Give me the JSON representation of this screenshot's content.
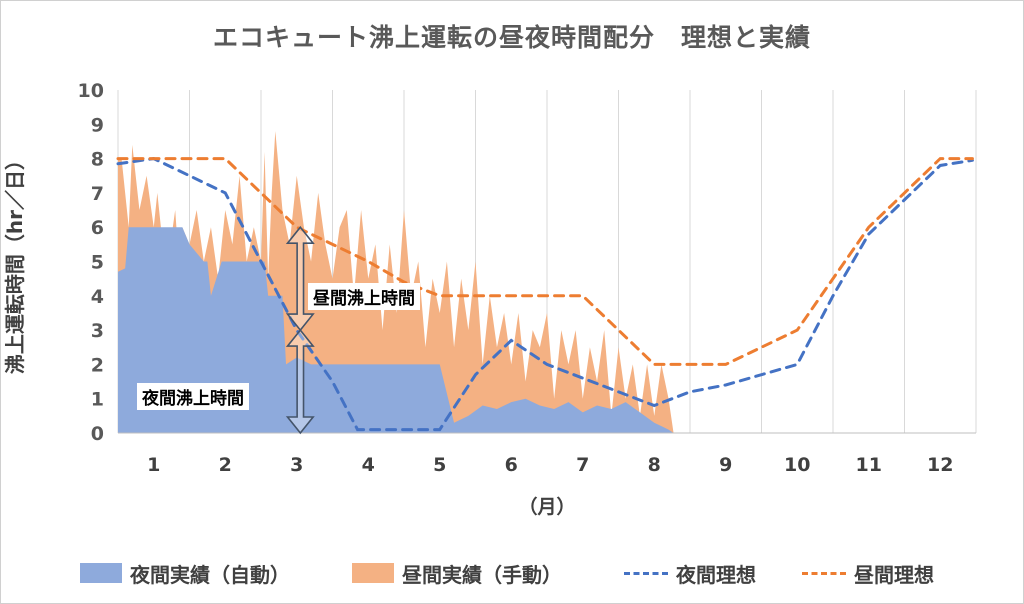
{
  "chart_data": {
    "type": "area",
    "title": "エコキュート沸上運転の昼夜時間配分　理想と実績",
    "ylabel": "沸上運転時間（hr／日）",
    "xlabel": "（月）",
    "ylim": [
      0,
      10
    ],
    "yticks": [
      0,
      1,
      2,
      3,
      4,
      5,
      6,
      7,
      8,
      9,
      10
    ],
    "categories": [
      "1",
      "2",
      "3",
      "4",
      "5",
      "6",
      "7",
      "8",
      "9",
      "10",
      "11",
      "12"
    ],
    "grid": "vertical",
    "legend_position": "bottom",
    "annotations": [
      "昼間沸上時間",
      "夜間沸上時間"
    ],
    "series": [
      {
        "name": "夜間実績（自動）",
        "kind": "area",
        "color": "#8eaadc",
        "x": [
          0.5,
          0.6,
          0.65,
          0.75,
          0.9,
          1.0,
          1.2,
          1.4,
          1.5,
          1.7,
          1.75,
          1.8,
          1.95,
          2.0,
          2.3,
          2.55,
          2.6,
          2.8,
          2.85,
          3.0,
          3.2,
          3.4,
          3.6,
          3.8,
          4.0,
          4.2,
          4.4,
          4.6,
          4.8,
          5.0,
          5.2,
          5.4,
          5.6,
          5.8,
          6.0,
          6.2,
          6.4,
          6.6,
          6.8,
          7.0,
          7.2,
          7.4,
          7.6,
          7.8,
          8.0,
          8.1,
          8.2,
          8.27
        ],
        "values": [
          4.7,
          4.8,
          6.0,
          6.0,
          6.0,
          6.0,
          6.0,
          6.0,
          5.5,
          5.0,
          5.0,
          4.0,
          5.0,
          5.0,
          5.0,
          5.0,
          4.0,
          4.0,
          2.0,
          2.2,
          2.0,
          2.0,
          2.0,
          2.0,
          2.0,
          2.0,
          2.0,
          2.0,
          2.0,
          2.0,
          0.3,
          0.5,
          0.8,
          0.7,
          0.9,
          1.0,
          0.8,
          0.7,
          0.9,
          0.6,
          0.8,
          0.7,
          0.9,
          0.6,
          0.3,
          0.2,
          0.1,
          0.0
        ]
      },
      {
        "name": "昼間実績（手動）",
        "kind": "area",
        "color": "#f4b183",
        "x": [
          0.5,
          0.55,
          0.65,
          0.7,
          0.8,
          0.9,
          1.0,
          1.05,
          1.1,
          1.2,
          1.3,
          1.35,
          1.4,
          1.5,
          1.6,
          1.7,
          1.8,
          1.9,
          2.0,
          2.1,
          2.2,
          2.3,
          2.4,
          2.5,
          2.55,
          2.6,
          2.65,
          2.7,
          2.8,
          2.9,
          3.0,
          3.1,
          3.2,
          3.3,
          3.4,
          3.5,
          3.6,
          3.7,
          3.8,
          3.9,
          4.0,
          4.1,
          4.2,
          4.3,
          4.4,
          4.5,
          4.6,
          4.7,
          4.8,
          4.9,
          5.0,
          5.1,
          5.2,
          5.3,
          5.4,
          5.5,
          5.6,
          5.7,
          5.8,
          5.9,
          6.0,
          6.1,
          6.2,
          6.3,
          6.4,
          6.5,
          6.6,
          6.7,
          6.8,
          6.9,
          7.0,
          7.1,
          7.2,
          7.3,
          7.4,
          7.5,
          7.6,
          7.7,
          7.8,
          7.9,
          8.0,
          8.1,
          8.2,
          8.27
        ],
        "values": [
          8.0,
          8.0,
          6.0,
          8.4,
          6.5,
          7.5,
          6.0,
          7.0,
          6.0,
          5.0,
          6.5,
          5.0,
          6.0,
          5.5,
          6.5,
          5.0,
          6.0,
          4.5,
          6.5,
          5.5,
          7.5,
          5.0,
          6.0,
          5.0,
          8.2,
          4.5,
          7.0,
          8.8,
          6.5,
          5.5,
          7.5,
          6.0,
          5.0,
          7.0,
          5.5,
          4.5,
          6.0,
          6.5,
          4.0,
          6.5,
          4.5,
          5.5,
          3.0,
          5.5,
          3.5,
          6.5,
          4.0,
          5.0,
          2.5,
          4.5,
          3.5,
          5.0,
          2.5,
          4.5,
          3.0,
          5.0,
          2.0,
          4.0,
          2.5,
          3.5,
          2.0,
          3.5,
          1.5,
          3.0,
          2.5,
          3.5,
          1.0,
          3.0,
          2.0,
          3.0,
          1.0,
          2.5,
          1.5,
          3.0,
          0.5,
          2.5,
          1.0,
          2.0,
          0.5,
          2.0,
          0.5,
          2.0,
          1.0,
          0.0
        ]
      },
      {
        "name": "夜間理想",
        "kind": "dashed-line",
        "color": "#4472c4",
        "x": [
          0.5,
          1.0,
          1.5,
          2.0,
          2.5,
          3.0,
          3.5,
          3.85,
          4.0,
          4.5,
          5.0,
          5.5,
          6.0,
          6.5,
          7.0,
          7.5,
          8.0,
          8.5,
          9.0,
          9.5,
          10.0,
          10.5,
          11.0,
          11.5,
          12.0,
          12.45
        ],
        "values": [
          7.85,
          8.0,
          7.5,
          7.0,
          5.0,
          3.0,
          1.5,
          0.1,
          0.1,
          0.1,
          0.1,
          1.7,
          2.7,
          2.0,
          1.6,
          1.2,
          0.8,
          1.2,
          1.4,
          1.7,
          2.0,
          4.0,
          5.8,
          6.8,
          7.8,
          7.95
        ]
      },
      {
        "name": "昼間理想",
        "kind": "dashed-line",
        "color": "#ed7d31",
        "x": [
          0.5,
          1.0,
          1.5,
          2.0,
          2.5,
          3.0,
          3.5,
          4.0,
          4.5,
          5.0,
          5.5,
          6.0,
          6.5,
          7.0,
          7.5,
          8.0,
          8.5,
          9.0,
          9.5,
          10.0,
          10.5,
          11.0,
          11.5,
          12.0,
          12.45
        ],
        "values": [
          8.0,
          8.0,
          8.0,
          8.0,
          7.0,
          6.0,
          5.5,
          5.0,
          4.4,
          4.0,
          4.0,
          4.0,
          4.0,
          4.0,
          3.0,
          2.0,
          2.0,
          2.0,
          2.5,
          3.0,
          4.5,
          6.0,
          7.0,
          8.0,
          8.0
        ]
      }
    ]
  }
}
